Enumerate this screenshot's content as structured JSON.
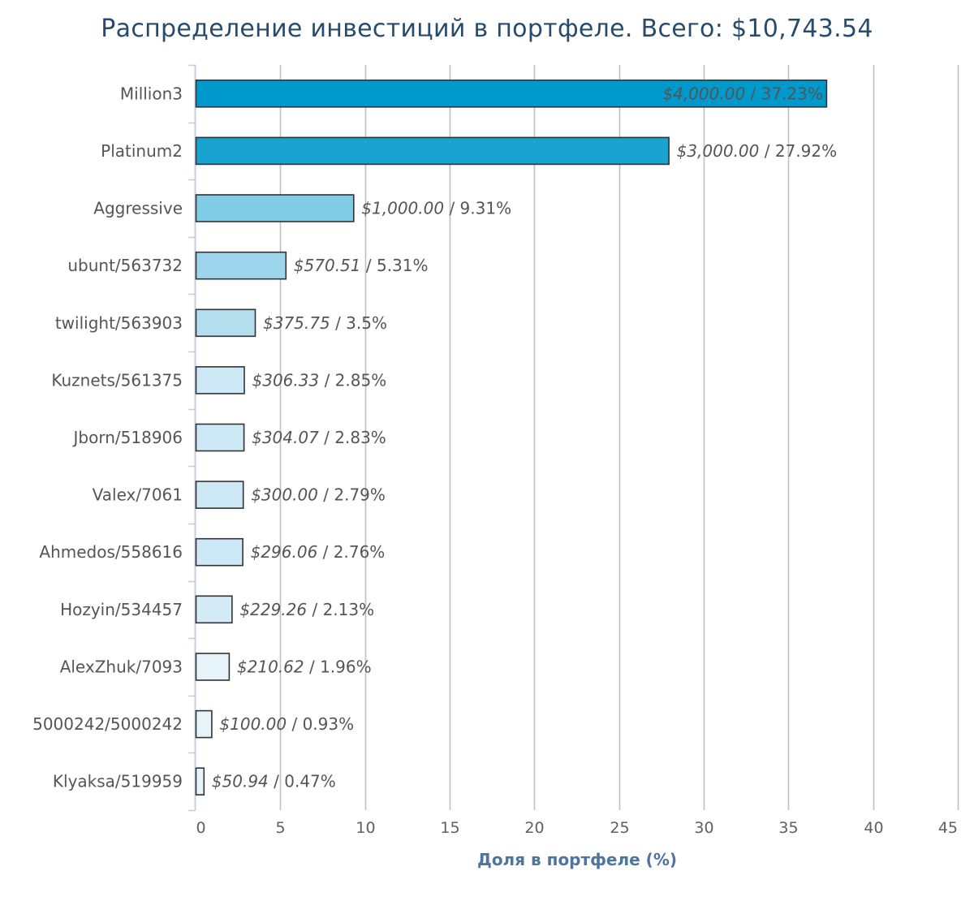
{
  "chart_data": {
    "type": "bar",
    "orientation": "horizontal",
    "title": "Распределение инвестиций в портфеле. Всего: $10,743.54",
    "xlabel": "Доля в портфеле (%)",
    "ylabel": "",
    "xlim": [
      0,
      45
    ],
    "xticks": [
      0,
      5,
      10,
      15,
      20,
      25,
      30,
      35,
      40,
      45
    ],
    "grid": true,
    "legend": false,
    "categories": [
      "Million3",
      "Platinum2",
      "Aggressive",
      "ubunt/563732",
      "twilight/563903",
      "Kuznets/561375",
      "Jborn/518906",
      "Valex/7061",
      "Ahmedos/558616",
      "Hozyin/534457",
      "AlexZhuk/7093",
      "5000242/5000242",
      "Klyaksa/519959"
    ],
    "values": [
      37.23,
      27.92,
      9.31,
      5.31,
      3.5,
      2.85,
      2.83,
      2.79,
      2.76,
      2.13,
      1.96,
      0.93,
      0.47
    ],
    "amounts": [
      "$4,000.00",
      "$3,000.00",
      "$1,000.00",
      "$570.51",
      "$375.75",
      "$306.33",
      "$304.07",
      "$300.00",
      "$296.06",
      "$229.26",
      "$210.62",
      "$100.00",
      "$50.94"
    ],
    "percent_labels": [
      "37.23%",
      "27.92%",
      "9.31%",
      "5.31%",
      "3.5%",
      "2.85%",
      "2.83%",
      "2.79%",
      "2.76%",
      "2.13%",
      "1.96%",
      "0.93%",
      "0.47%"
    ],
    "label_separator": " / ",
    "bar_colors": [
      "#0099cc",
      "#1aa3d1",
      "#80cbe6",
      "#9dd6ec",
      "#b3dfef",
      "#cce9f5",
      "#cce9f5",
      "#cce9f5",
      "#cce9f5",
      "#d2ebf6",
      "#e6f4fa",
      "#e6f4fa",
      "#e6f4fa"
    ],
    "bar_border_color": "#333333",
    "grid_color": "#c0c0c0",
    "axis_color": "#c0d0e0"
  }
}
